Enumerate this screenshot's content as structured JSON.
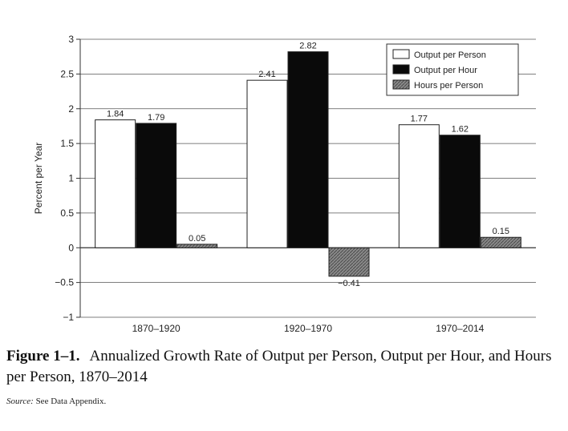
{
  "chart_data": {
    "type": "bar",
    "categories": [
      "1870–1920",
      "1920–1970",
      "1970–2014"
    ],
    "series": [
      {
        "name": "Output per Person",
        "values": [
          1.84,
          2.41,
          1.77
        ],
        "labels": [
          "1.84",
          "2.41",
          "1.77"
        ],
        "color": "#ffffff"
      },
      {
        "name": "Output per Hour",
        "values": [
          1.79,
          2.82,
          1.62
        ],
        "labels": [
          "1.79",
          "2.82",
          "1.62"
        ],
        "color": "#0a0a0a"
      },
      {
        "name": "Hours per Person",
        "values": [
          0.05,
          -0.41,
          0.15
        ],
        "labels": [
          "0.05",
          "−0.41",
          "0.15"
        ],
        "color": "#8a8a8a"
      }
    ],
    "ylabel": "Percent per Year",
    "ylim": [
      -1,
      3
    ],
    "yticks": [
      3,
      2.5,
      2,
      1.5,
      1,
      0.5,
      0,
      -0.5,
      -1
    ],
    "ytick_labels": [
      "3",
      "2.5",
      "2",
      "1.5",
      "1",
      "0.5",
      "0",
      "−0.5",
      "−1"
    ],
    "grid": true,
    "legend_position": "top-right"
  },
  "caption": {
    "figure_number": "Figure 1–1.",
    "text": "Annualized Growth Rate of Output per Person, Output per Hour, and Hours per Person, 1870–2014"
  },
  "source": {
    "label": "Source:",
    "text": "See Data Appendix."
  }
}
